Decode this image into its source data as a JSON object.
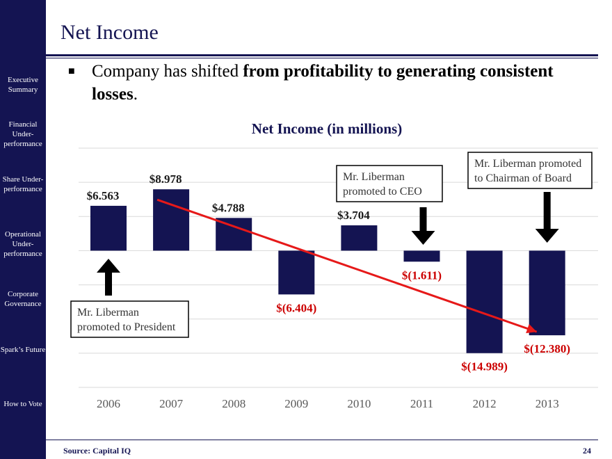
{
  "sidebar": {
    "items": [
      {
        "label": "Executive Summary"
      },
      {
        "label": "Financial Under-performance"
      },
      {
        "label": "Share Under-performance"
      },
      {
        "label": "Operational Under-performance"
      },
      {
        "label": "Corporate Governance"
      },
      {
        "label": "Spark’s Future"
      },
      {
        "label": "How to Vote"
      }
    ]
  },
  "header": {
    "title": "Net Income"
  },
  "bullet": {
    "text_before": "Company has shifted ",
    "text_bold": "from profitability to generating consistent losses",
    "text_after": "."
  },
  "chart_data": {
    "type": "bar",
    "title": "Net Income (in millions)",
    "categories": [
      "2006",
      "2007",
      "2008",
      "2009",
      "2010",
      "2011",
      "2012",
      "2013"
    ],
    "values": [
      6.563,
      8.978,
      4.788,
      -6.404,
      3.704,
      -1.611,
      -14.989,
      -12.38
    ],
    "value_labels": [
      "$6.563",
      "$8.978",
      "$4.788",
      "$(6.404)",
      "$3.704",
      "$(1.611)",
      "$(14.989)",
      "$(12.380)"
    ],
    "ylim": [
      -20,
      15
    ],
    "grid": true,
    "colors": {
      "bar": "#141452",
      "negative_label": "#cc0000",
      "trend_line": "#e61919"
    },
    "trend_line": {
      "from_category": "2007",
      "from_value": 8.978,
      "to_category": "2013",
      "to_value": -12.38
    },
    "annotations": [
      {
        "text": [
          "Mr. Liberman",
          "promoted to President"
        ],
        "category": "2006",
        "arrow": "up"
      },
      {
        "text": [
          "Mr. Liberman",
          "promoted to CEO"
        ],
        "category": "2011",
        "arrow": "down"
      },
      {
        "text": [
          "Mr. Liberman promoted",
          "to Chairman of Board"
        ],
        "category": "2013",
        "arrow": "down"
      }
    ]
  },
  "footer": {
    "source": "Source: Capital IQ",
    "page": "24"
  }
}
